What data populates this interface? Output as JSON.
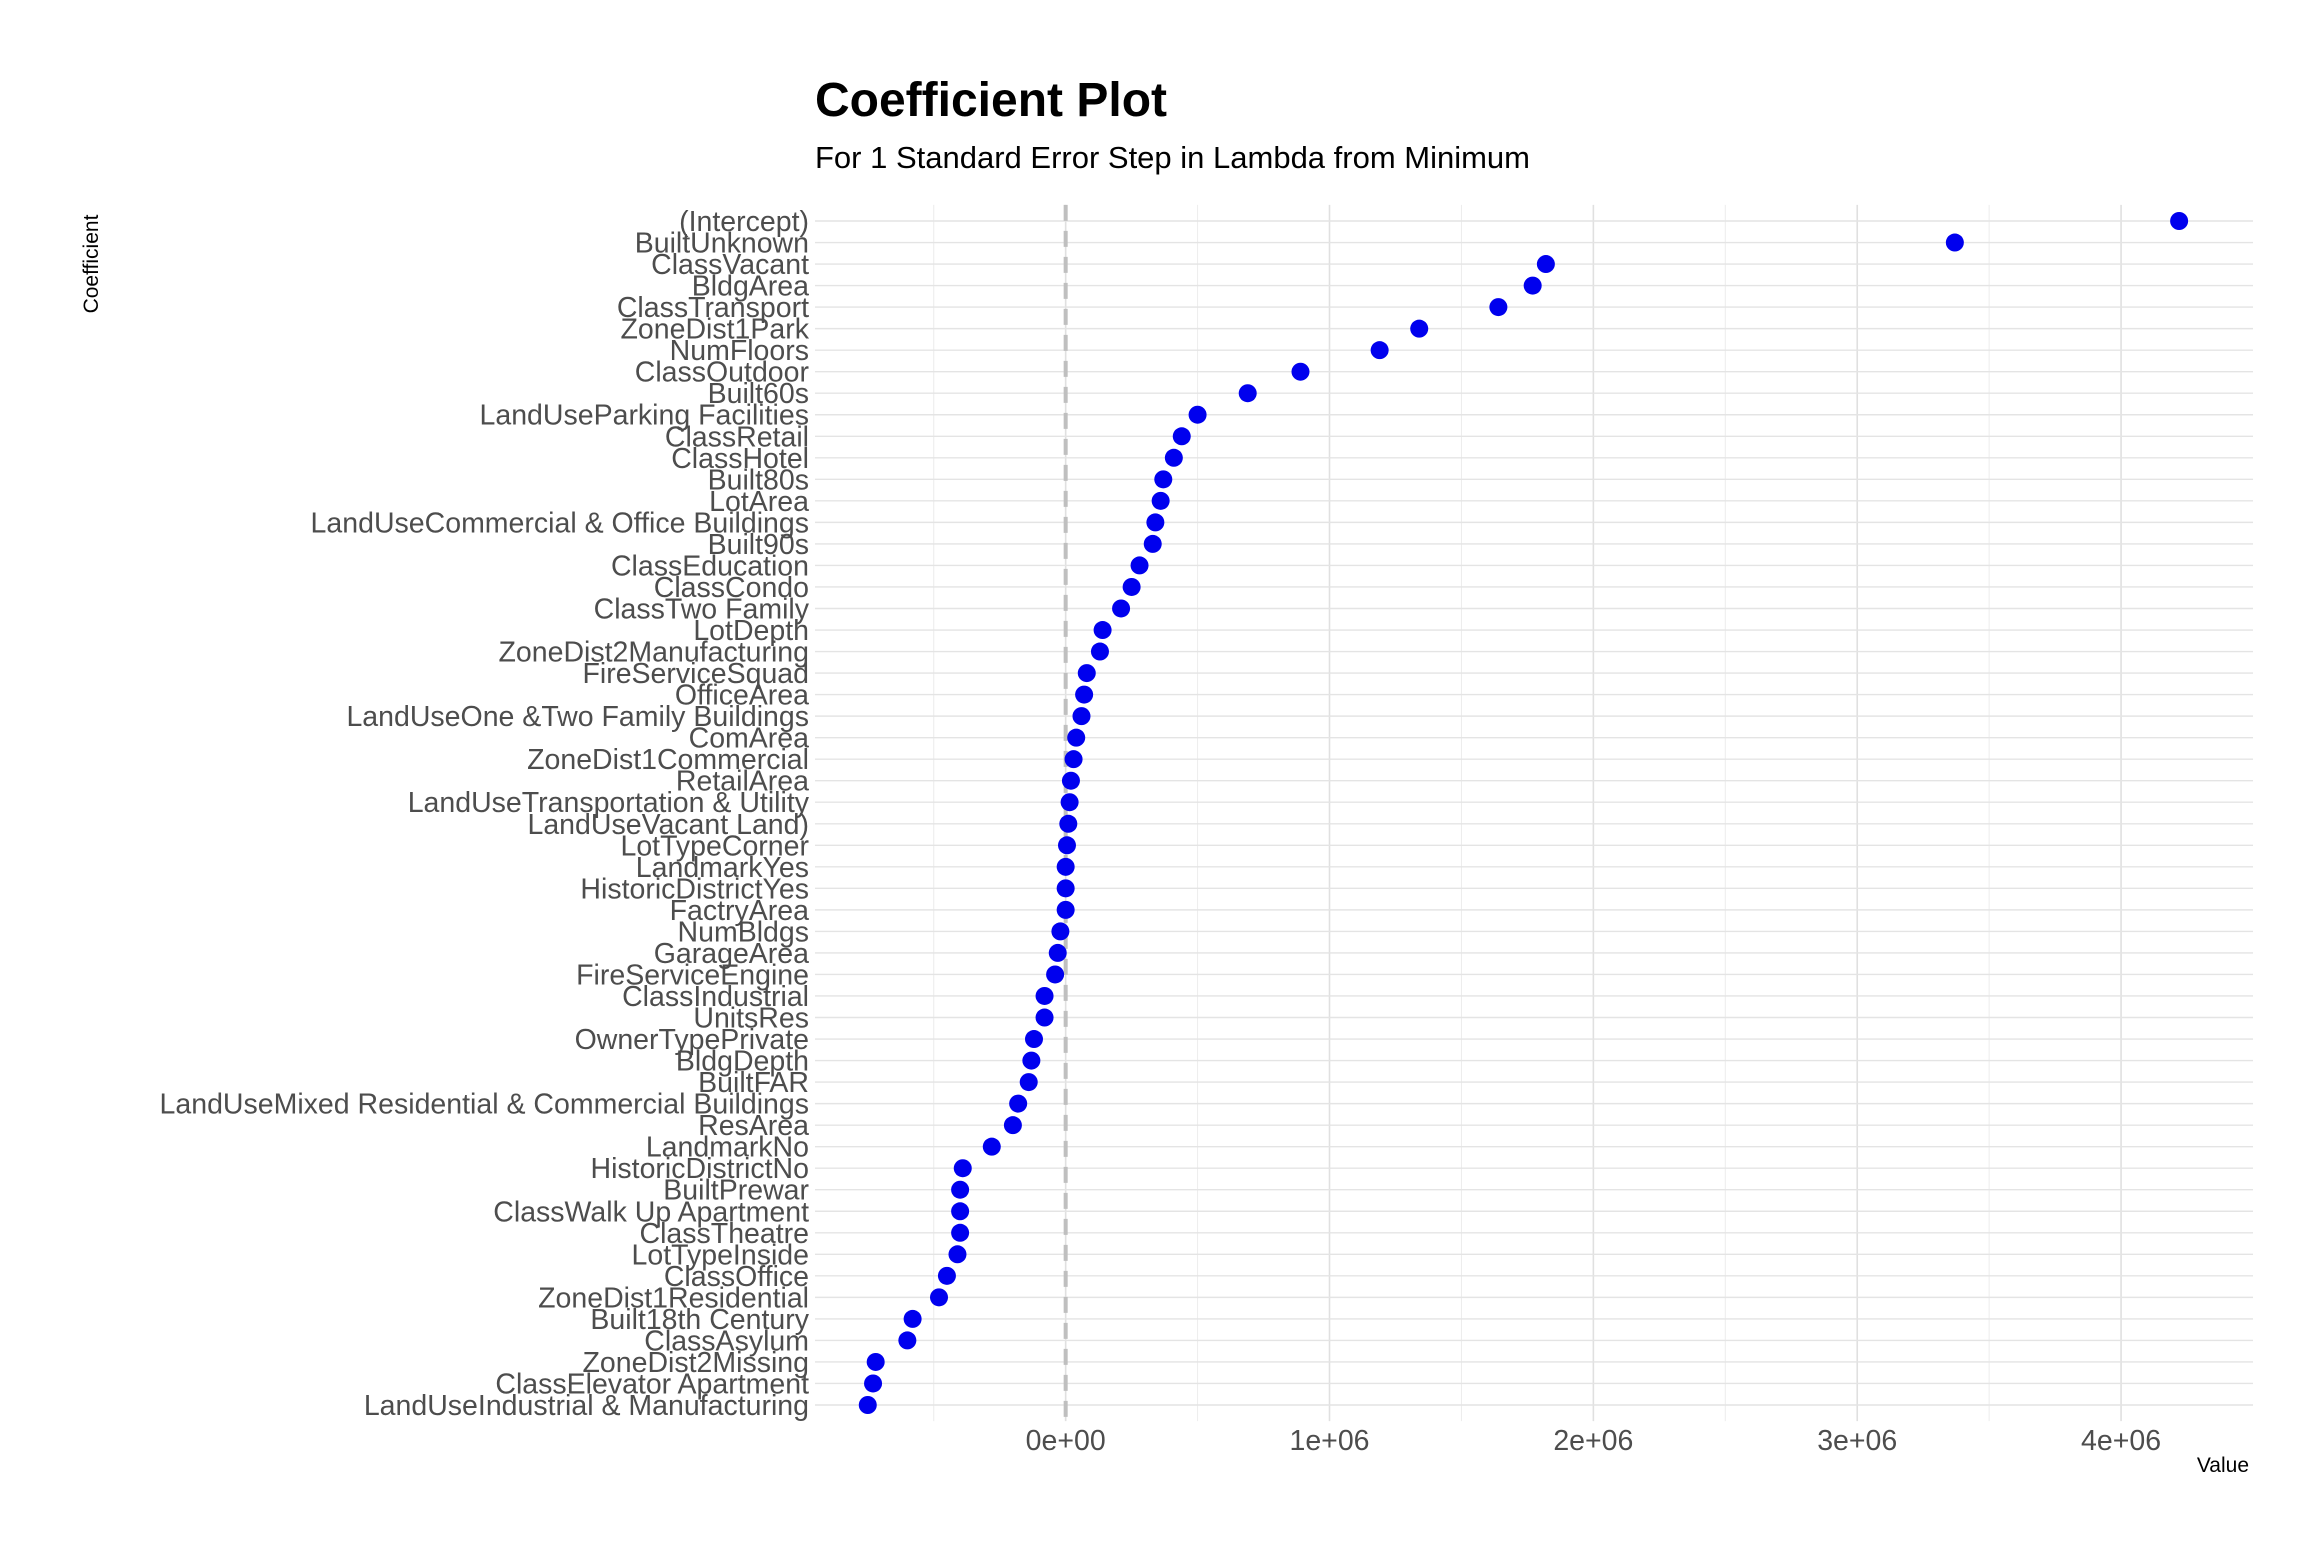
{
  "chart_data": {
    "type": "scatter",
    "title": "Coefficient Plot",
    "subtitle": "For 1 Standard Error Step in Lambda from Minimum",
    "xlabel": "Value",
    "ylabel": "Coefficient",
    "xlim": [
      -950000,
      4500000
    ],
    "x_ticks": [
      0,
      1000000,
      2000000,
      3000000,
      4000000
    ],
    "x_tick_labels": [
      "0e+00",
      "1e+06",
      "2e+06",
      "3e+06",
      "4e+06"
    ],
    "reference_line_x": 0,
    "grid": true,
    "point_color": "#0000ee",
    "reference_line_color": "#bfbfbf",
    "categories": [
      "(Intercept)",
      "BuiltUnknown",
      "ClassVacant",
      "BldgArea",
      "ClassTransport",
      "ZoneDist1Park",
      "NumFloors",
      "ClassOutdoor",
      "Built60s",
      "LandUseParking Facilities",
      "ClassRetail",
      "ClassHotel",
      "Built80s",
      "LotArea",
      "LandUseCommercial & Office Buildings",
      "Built90s",
      "ClassEducation",
      "ClassCondo",
      "ClassTwo Family",
      "LotDepth",
      "ZoneDist2Manufacturing",
      "FireServiceSquad",
      "OfficeArea",
      "LandUseOne &Two Family Buildings",
      "ComArea",
      "ZoneDist1Commercial",
      "RetailArea",
      "LandUseTransportation & Utility",
      "LandUseVacant Land)",
      "LotTypeCorner",
      "LandmarkYes",
      "HistoricDistrictYes",
      "FactryArea",
      "NumBldgs",
      "GarageArea",
      "FireServiceEngine",
      "ClassIndustrial",
      "UnitsRes",
      "OwnerTypePrivate",
      "BldgDepth",
      "BuiltFAR",
      "LandUseMixed Residential & Commercial Buildings",
      "ResArea",
      "LandmarkNo",
      "HistoricDistrictNo",
      "BuiltPrewar",
      "ClassWalk Up Apartment",
      "ClassTheatre",
      "LotTypeInside",
      "ClassOffice",
      "ZoneDist1Residential",
      "Built18th Century",
      "ClassAsylum",
      "ZoneDist2Missing",
      "ClassElevator Apartment",
      "LandUseIndustrial & Manufacturing"
    ],
    "values": [
      4220000,
      3370000,
      1820000,
      1770000,
      1640000,
      1340000,
      1190000,
      890000,
      690000,
      500000,
      440000,
      410000,
      370000,
      360000,
      340000,
      330000,
      280000,
      250000,
      210000,
      140000,
      130000,
      80000,
      70000,
      60000,
      40000,
      30000,
      20000,
      15000,
      10000,
      5000,
      0,
      0,
      0,
      -20000,
      -30000,
      -40000,
      -80000,
      -80000,
      -120000,
      -130000,
      -140000,
      -180000,
      -200000,
      -280000,
      -390000,
      -400000,
      -400000,
      -400000,
      -410000,
      -450000,
      -480000,
      -580000,
      -600000,
      -720000,
      -730000,
      -750000
    ]
  }
}
